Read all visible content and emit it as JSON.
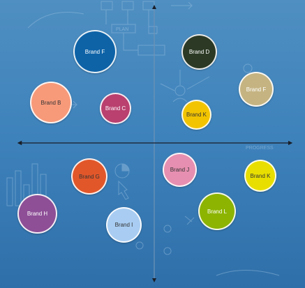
{
  "brands": [
    {
      "id": "brand-f-left",
      "label": "Brand F",
      "color": "#0e63a7",
      "text_color": "#ffffff"
    },
    {
      "id": "brand-d",
      "label": "Brand D",
      "color": "#2c3a25",
      "text_color": "#ffffff"
    },
    {
      "id": "brand-f-right",
      "label": "Brand F",
      "color": "#c5b482",
      "text_color": "#ffffff"
    },
    {
      "id": "brand-b",
      "label": "Brand B",
      "color": "#f79a7a",
      "text_color": "#333333"
    },
    {
      "id": "brand-c",
      "label": "Brand C",
      "color": "#b9406f",
      "text_color": "#ffffff"
    },
    {
      "id": "brand-k-top",
      "label": "Brand K",
      "color": "#f2c400",
      "text_color": "#333333"
    },
    {
      "id": "brand-g",
      "label": "Brand G",
      "color": "#e2572a",
      "text_color": "#333333"
    },
    {
      "id": "brand-j",
      "label": "Brand J",
      "color": "#e78fb0",
      "text_color": "#333333"
    },
    {
      "id": "brand-k-right",
      "label": "Brand K",
      "color": "#e8df00",
      "text_color": "#333333"
    },
    {
      "id": "brand-h",
      "label": "Brand H",
      "color": "#8e4f97",
      "text_color": "#ffffff"
    },
    {
      "id": "brand-i",
      "label": "Brand I",
      "color": "#a9cdf2",
      "text_color": "#333333"
    },
    {
      "id": "brand-l",
      "label": "Brand L",
      "color": "#8cb400",
      "text_color": "#ffffff"
    }
  ],
  "background": {
    "plan_label": "PLAN",
    "progress_label": "PROGRESS"
  }
}
